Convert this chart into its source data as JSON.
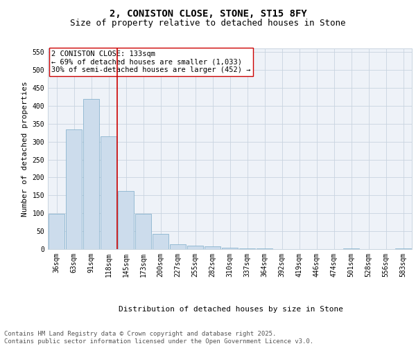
{
  "title_line1": "2, CONISTON CLOSE, STONE, ST15 8FY",
  "title_line2": "Size of property relative to detached houses in Stone",
  "xlabel": "Distribution of detached houses by size in Stone",
  "ylabel": "Number of detached properties",
  "categories": [
    "36sqm",
    "63sqm",
    "91sqm",
    "118sqm",
    "145sqm",
    "173sqm",
    "200sqm",
    "227sqm",
    "255sqm",
    "282sqm",
    "310sqm",
    "337sqm",
    "364sqm",
    "392sqm",
    "419sqm",
    "446sqm",
    "474sqm",
    "501sqm",
    "528sqm",
    "556sqm",
    "583sqm"
  ],
  "values": [
    98,
    335,
    420,
    315,
    163,
    98,
    43,
    13,
    10,
    7,
    4,
    1,
    1,
    0,
    0,
    0,
    0,
    1,
    0,
    0,
    1
  ],
  "bar_color": "#ccdcec",
  "bar_edge_color": "#7aaac8",
  "vline_color": "#cc0000",
  "vline_pos": 3.5,
  "annotation_text": "2 CONISTON CLOSE: 133sqm\n← 69% of detached houses are smaller (1,033)\n30% of semi-detached houses are larger (452) →",
  "annotation_box_facecolor": "#ffffff",
  "annotation_box_edgecolor": "#cc0000",
  "ylim": [
    0,
    560
  ],
  "yticks": [
    0,
    50,
    100,
    150,
    200,
    250,
    300,
    350,
    400,
    450,
    500,
    550
  ],
  "grid_color": "#c8d4e0",
  "plot_bg_color": "#eef2f8",
  "fig_bg_color": "#ffffff",
  "title_fontsize": 10,
  "subtitle_fontsize": 9,
  "axis_label_fontsize": 8,
  "tick_fontsize": 7,
  "annotation_fontsize": 7.5,
  "footer_fontsize": 6.5,
  "footer_text": "Contains HM Land Registry data © Crown copyright and database right 2025.\nContains public sector information licensed under the Open Government Licence v3.0."
}
